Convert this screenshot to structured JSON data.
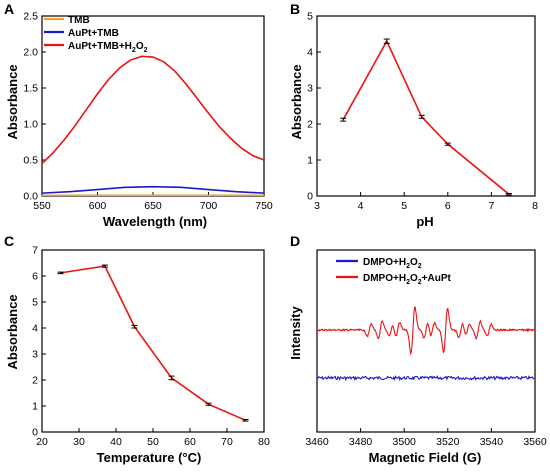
{
  "chart_data": [
    {
      "panel": "A",
      "type": "line",
      "xlabel": "Wavelength (nm)",
      "ylabel": "Absorbance",
      "xlim": [
        550,
        750
      ],
      "ylim": [
        0,
        2.5
      ],
      "xticks": [
        550,
        600,
        650,
        700,
        750
      ],
      "yticks": [
        0.0,
        0.5,
        1.0,
        1.5,
        2.0,
        2.5
      ],
      "ytick_labels": [
        "0.0",
        "0.5",
        "1.0",
        "1.5",
        "2.0",
        "2.5"
      ],
      "legend_position": "top-left",
      "series": [
        {
          "name": "TMB",
          "name_main": "TMB",
          "color": "#f0a030",
          "x": [
            550,
            575,
            600,
            625,
            650,
            675,
            700,
            725,
            750
          ],
          "y": [
            0.01,
            0.01,
            0.01,
            0.01,
            0.01,
            0.01,
            0.01,
            0.01,
            0.01
          ]
        },
        {
          "name": "AuPt+TMB",
          "name_main": "AuPt+TMB",
          "color": "#1a1acc",
          "x": [
            550,
            575,
            600,
            625,
            650,
            675,
            700,
            725,
            750
          ],
          "y": [
            0.04,
            0.06,
            0.09,
            0.12,
            0.13,
            0.12,
            0.09,
            0.06,
            0.04
          ]
        },
        {
          "name": "AuPt+TMB+H2O2",
          "name_main": "AuPt+TMB+H",
          "name_sub1": "2",
          "name_mid": "O",
          "name_sub2": "2",
          "color": "#ee1111",
          "x": [
            550,
            560,
            570,
            580,
            590,
            600,
            610,
            620,
            630,
            640,
            650,
            660,
            670,
            680,
            690,
            700,
            710,
            720,
            730,
            740,
            750
          ],
          "y": [
            0.45,
            0.6,
            0.78,
            0.98,
            1.2,
            1.42,
            1.62,
            1.78,
            1.89,
            1.94,
            1.93,
            1.86,
            1.73,
            1.55,
            1.35,
            1.15,
            0.96,
            0.8,
            0.66,
            0.56,
            0.5
          ]
        }
      ]
    },
    {
      "panel": "B",
      "type": "line",
      "xlabel": "pH",
      "ylabel": "Absorbance",
      "xlim": [
        3,
        8
      ],
      "ylim": [
        0,
        5
      ],
      "xticks": [
        3,
        4,
        5,
        6,
        7,
        8
      ],
      "yticks": [
        0,
        1,
        2,
        3,
        4,
        5
      ],
      "ytick_labels": [
        "0",
        "1",
        "2",
        "3",
        "4",
        "5"
      ],
      "series": [
        {
          "color": "#ee1111",
          "x": [
            3.6,
            4.6,
            5.4,
            6.0,
            7.4
          ],
          "y": [
            2.12,
            4.3,
            2.2,
            1.44,
            0.05
          ],
          "err": [
            0.04,
            0.06,
            0.04,
            0.03,
            0.02
          ]
        }
      ]
    },
    {
      "panel": "C",
      "type": "line",
      "xlabel": "Temperature (°C)",
      "ylabel": "Absorbance",
      "xlim": [
        20,
        80
      ],
      "ylim": [
        0,
        7
      ],
      "xticks": [
        20,
        30,
        40,
        50,
        60,
        70,
        80
      ],
      "yticks": [
        0,
        1,
        2,
        3,
        4,
        5,
        6,
        7
      ],
      "ytick_labels": [
        "0",
        "1",
        "2",
        "3",
        "4",
        "5",
        "6",
        "7"
      ],
      "series": [
        {
          "color": "#ee1111",
          "x": [
            25,
            37,
            45,
            55,
            65,
            75
          ],
          "y": [
            6.12,
            6.38,
            4.05,
            2.08,
            1.07,
            0.45
          ],
          "err": [
            0.03,
            0.04,
            0.05,
            0.07,
            0.04,
            0.03
          ]
        }
      ]
    },
    {
      "panel": "D",
      "type": "line",
      "xlabel": "Magnetic Field (G)",
      "ylabel": "Intensity",
      "xlim": [
        3460,
        3560
      ],
      "xticks": [
        3460,
        3480,
        3500,
        3520,
        3540,
        3560
      ],
      "legend_position": "top-left",
      "series": [
        {
          "name": "DMPO+H2O2",
          "name_main": "DMPO+H",
          "name_sub1": "2",
          "name_mid": "O",
          "name_sub2": "2",
          "name_tail": "",
          "color": "#1a1acc"
        },
        {
          "name": "DMPO+H2O2+AuPt",
          "name_main": "DMPO+H",
          "name_sub1": "2",
          "name_mid": "O",
          "name_sub2": "2",
          "name_tail": "+AuPt",
          "color": "#ee1111"
        }
      ]
    }
  ]
}
